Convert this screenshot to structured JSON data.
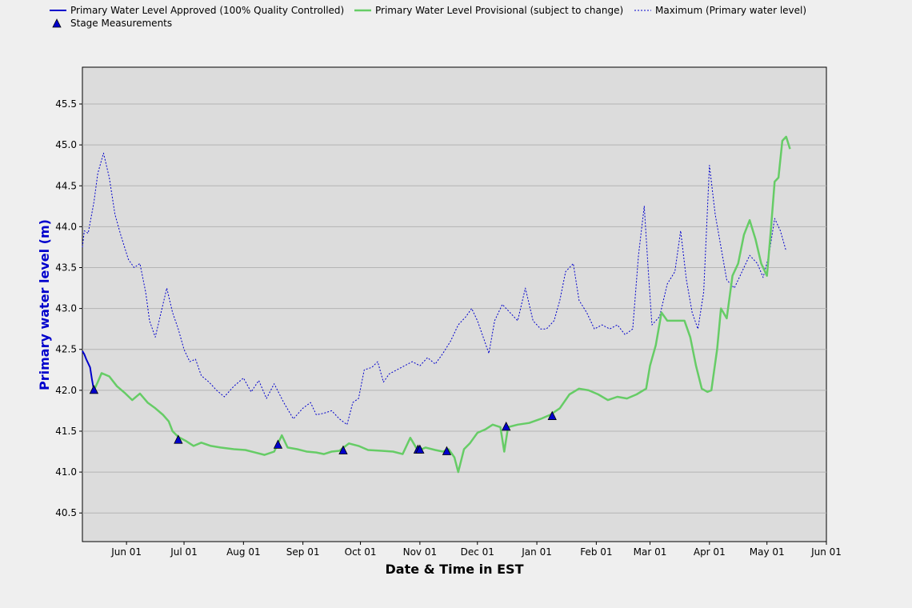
{
  "chart_data": {
    "type": "line",
    "xlabel": "Date & Time in EST",
    "ylabel": "Primary water level (m)",
    "ylim": [
      40.15,
      45.95
    ],
    "yticks": [
      40.5,
      41.0,
      41.5,
      42.0,
      42.5,
      43.0,
      43.5,
      44.0,
      44.5,
      45.0,
      45.5
    ],
    "ytick_labels": [
      "40.5",
      "41.0",
      "41.5",
      "42.0",
      "42.5",
      "43.0",
      "43.5",
      "44.0",
      "44.5",
      "45.0",
      "45.5"
    ],
    "xlim": [
      "2024-05-09",
      "2025-06-01"
    ],
    "xticks": [
      "2024-06-01",
      "2024-07-01",
      "2024-08-01",
      "2024-09-01",
      "2024-10-01",
      "2024-11-01",
      "2024-12-01",
      "2025-01-01",
      "2025-02-01",
      "2025-03-01",
      "2025-04-01",
      "2025-05-01",
      "2025-06-01"
    ],
    "xtick_labels": [
      "Jun 01",
      "Jul 01",
      "Aug 01",
      "Sep 01",
      "Oct 01",
      "Nov 01",
      "Dec 01",
      "Jan 01",
      "Feb 01",
      "Mar 01",
      "Apr 01",
      "May 01",
      "Jun 01"
    ],
    "grid": "horizontal",
    "legend_position": "top",
    "colors": {
      "approved": "#0000cc",
      "provisional": "#66cc66",
      "maximum": "#0000cc",
      "plot_bg": "#dcdcdc",
      "page_bg": "#efefef"
    },
    "series": [
      {
        "name": "Primary Water Level Approved (100% Quality Controlled)",
        "style": "solid",
        "points": [
          [
            "2024-05-09",
            42.48
          ],
          [
            "2024-05-10",
            42.44
          ],
          [
            "2024-05-11",
            42.38
          ],
          [
            "2024-05-12",
            42.33
          ],
          [
            "2024-05-13",
            42.28
          ],
          [
            "2024-05-14",
            42.13
          ],
          [
            "2024-05-15",
            42.0
          ]
        ]
      },
      {
        "name": "Primary Water Level Provisional (subject to change)",
        "style": "solid",
        "points": [
          [
            "2024-05-15",
            42.0
          ],
          [
            "2024-05-17",
            42.1
          ],
          [
            "2024-05-19",
            42.21
          ],
          [
            "2024-05-23",
            42.17
          ],
          [
            "2024-05-27",
            42.05
          ],
          [
            "2024-05-31",
            41.97
          ],
          [
            "2024-06-04",
            41.88
          ],
          [
            "2024-06-08",
            41.96
          ],
          [
            "2024-06-12",
            41.85
          ],
          [
            "2024-06-16",
            41.78
          ],
          [
            "2024-06-20",
            41.7
          ],
          [
            "2024-06-23",
            41.62
          ],
          [
            "2024-06-25",
            41.5
          ],
          [
            "2024-06-28",
            41.43
          ],
          [
            "2024-07-02",
            41.38
          ],
          [
            "2024-07-06",
            41.32
          ],
          [
            "2024-07-10",
            41.36
          ],
          [
            "2024-07-15",
            41.32
          ],
          [
            "2024-07-20",
            41.3
          ],
          [
            "2024-07-27",
            41.28
          ],
          [
            "2024-08-02",
            41.27
          ],
          [
            "2024-08-07",
            41.24
          ],
          [
            "2024-08-12",
            41.21
          ],
          [
            "2024-08-17",
            41.25
          ],
          [
            "2024-08-21",
            41.45
          ],
          [
            "2024-08-24",
            41.3
          ],
          [
            "2024-08-29",
            41.28
          ],
          [
            "2024-09-03",
            41.25
          ],
          [
            "2024-09-08",
            41.24
          ],
          [
            "2024-09-12",
            41.22
          ],
          [
            "2024-09-16",
            41.25
          ],
          [
            "2024-09-20",
            41.26
          ],
          [
            "2024-09-25",
            41.35
          ],
          [
            "2024-09-30",
            41.32
          ],
          [
            "2024-10-05",
            41.27
          ],
          [
            "2024-10-12",
            41.26
          ],
          [
            "2024-10-18",
            41.25
          ],
          [
            "2024-10-23",
            41.22
          ],
          [
            "2024-10-27",
            41.42
          ],
          [
            "2024-10-31",
            41.26
          ],
          [
            "2024-11-04",
            41.3
          ],
          [
            "2024-11-09",
            41.27
          ],
          [
            "2024-11-13",
            41.25
          ],
          [
            "2024-11-16",
            41.28
          ],
          [
            "2024-11-19",
            41.18
          ],
          [
            "2024-11-21",
            41.0
          ],
          [
            "2024-11-24",
            41.28
          ],
          [
            "2024-11-27",
            41.35
          ],
          [
            "2024-12-01",
            41.48
          ],
          [
            "2024-12-05",
            41.52
          ],
          [
            "2024-12-09",
            41.58
          ],
          [
            "2024-12-13",
            41.55
          ],
          [
            "2024-12-15",
            41.25
          ],
          [
            "2024-12-17",
            41.55
          ],
          [
            "2024-12-22",
            41.58
          ],
          [
            "2024-12-28",
            41.6
          ],
          [
            "2025-01-03",
            41.65
          ],
          [
            "2025-01-08",
            41.7
          ],
          [
            "2025-01-13",
            41.78
          ],
          [
            "2025-01-18",
            41.95
          ],
          [
            "2025-01-23",
            42.02
          ],
          [
            "2025-01-28",
            42.0
          ],
          [
            "2025-02-02",
            41.95
          ],
          [
            "2025-02-07",
            41.88
          ],
          [
            "2025-02-12",
            41.92
          ],
          [
            "2025-02-17",
            41.9
          ],
          [
            "2025-02-22",
            41.95
          ],
          [
            "2025-02-27",
            42.02
          ],
          [
            "2025-03-01",
            42.3
          ],
          [
            "2025-03-04",
            42.55
          ],
          [
            "2025-03-07",
            42.95
          ],
          [
            "2025-03-10",
            42.85
          ],
          [
            "2025-03-14",
            42.85
          ],
          [
            "2025-03-19",
            42.85
          ],
          [
            "2025-03-22",
            42.65
          ],
          [
            "2025-03-25",
            42.3
          ],
          [
            "2025-03-28",
            42.02
          ],
          [
            "2025-03-31",
            41.98
          ],
          [
            "2025-04-02",
            42.0
          ],
          [
            "2025-04-05",
            42.5
          ],
          [
            "2025-04-07",
            43.0
          ],
          [
            "2025-04-10",
            42.88
          ],
          [
            "2025-04-13",
            43.4
          ],
          [
            "2025-04-16",
            43.55
          ],
          [
            "2025-04-19",
            43.9
          ],
          [
            "2025-04-22",
            44.08
          ],
          [
            "2025-04-25",
            43.85
          ],
          [
            "2025-04-28",
            43.55
          ],
          [
            "2025-05-01",
            43.4
          ],
          [
            "2025-05-03",
            43.95
          ],
          [
            "2025-05-05",
            44.55
          ],
          [
            "2025-05-07",
            44.6
          ],
          [
            "2025-05-09",
            45.05
          ],
          [
            "2025-05-11",
            45.1
          ],
          [
            "2025-05-13",
            44.95
          ]
        ]
      },
      {
        "name": "Maximum (Primary water level)",
        "style": "dotted",
        "points": [
          [
            "2024-05-09",
            43.75
          ],
          [
            "2024-05-10",
            43.95
          ],
          [
            "2024-05-12",
            43.92
          ],
          [
            "2024-05-15",
            44.3
          ],
          [
            "2024-05-17",
            44.65
          ],
          [
            "2024-05-20",
            44.9
          ],
          [
            "2024-05-23",
            44.6
          ],
          [
            "2024-05-26",
            44.15
          ],
          [
            "2024-05-29",
            43.9
          ],
          [
            "2024-06-02",
            43.6
          ],
          [
            "2024-06-05",
            43.5
          ],
          [
            "2024-06-08",
            43.55
          ],
          [
            "2024-06-11",
            43.2
          ],
          [
            "2024-06-13",
            42.85
          ],
          [
            "2024-06-16",
            42.65
          ],
          [
            "2024-06-19",
            42.95
          ],
          [
            "2024-06-22",
            43.25
          ],
          [
            "2024-06-25",
            42.95
          ],
          [
            "2024-06-28",
            42.75
          ],
          [
            "2024-07-01",
            42.5
          ],
          [
            "2024-07-04",
            42.35
          ],
          [
            "2024-07-07",
            42.38
          ],
          [
            "2024-07-10",
            42.18
          ],
          [
            "2024-07-14",
            42.1
          ],
          [
            "2024-07-18",
            42.0
          ],
          [
            "2024-07-22",
            41.92
          ],
          [
            "2024-07-27",
            42.05
          ],
          [
            "2024-08-01",
            42.15
          ],
          [
            "2024-08-05",
            41.98
          ],
          [
            "2024-08-09",
            42.12
          ],
          [
            "2024-08-13",
            41.9
          ],
          [
            "2024-08-17",
            42.08
          ],
          [
            "2024-08-22",
            41.85
          ],
          [
            "2024-08-27",
            41.65
          ],
          [
            "2024-09-01",
            41.78
          ],
          [
            "2024-09-05",
            41.85
          ],
          [
            "2024-09-08",
            41.7
          ],
          [
            "2024-09-12",
            41.72
          ],
          [
            "2024-09-16",
            41.75
          ],
          [
            "2024-09-20",
            41.65
          ],
          [
            "2024-09-24",
            41.58
          ],
          [
            "2024-09-27",
            41.85
          ],
          [
            "2024-09-30",
            41.9
          ],
          [
            "2024-10-03",
            42.25
          ],
          [
            "2024-10-07",
            42.28
          ],
          [
            "2024-10-10",
            42.35
          ],
          [
            "2024-10-13",
            42.1
          ],
          [
            "2024-10-16",
            42.2
          ],
          [
            "2024-10-20",
            42.25
          ],
          [
            "2024-10-24",
            42.3
          ],
          [
            "2024-10-28",
            42.35
          ],
          [
            "2024-11-01",
            42.3
          ],
          [
            "2024-11-05",
            42.4
          ],
          [
            "2024-11-09",
            42.32
          ],
          [
            "2024-11-13",
            42.45
          ],
          [
            "2024-11-17",
            42.6
          ],
          [
            "2024-11-21",
            42.8
          ],
          [
            "2024-11-25",
            42.9
          ],
          [
            "2024-11-28",
            43.0
          ],
          [
            "2024-12-01",
            42.85
          ],
          [
            "2024-12-04",
            42.65
          ],
          [
            "2024-12-07",
            42.45
          ],
          [
            "2024-12-10",
            42.85
          ],
          [
            "2024-12-14",
            43.05
          ],
          [
            "2024-12-18",
            42.95
          ],
          [
            "2024-12-22",
            42.85
          ],
          [
            "2024-12-26",
            43.25
          ],
          [
            "2024-12-30",
            42.85
          ],
          [
            "2025-01-03",
            42.75
          ],
          [
            "2025-01-06",
            42.75
          ],
          [
            "2025-01-10",
            42.85
          ],
          [
            "2025-01-13",
            43.1
          ],
          [
            "2025-01-16",
            43.45
          ],
          [
            "2025-01-20",
            43.55
          ],
          [
            "2025-01-23",
            43.1
          ],
          [
            "2025-01-27",
            42.95
          ],
          [
            "2025-01-31",
            42.75
          ],
          [
            "2025-02-04",
            42.8
          ],
          [
            "2025-02-08",
            42.75
          ],
          [
            "2025-02-12",
            42.8
          ],
          [
            "2025-02-16",
            42.68
          ],
          [
            "2025-02-20",
            42.75
          ],
          [
            "2025-02-23",
            43.65
          ],
          [
            "2025-02-26",
            44.25
          ],
          [
            "2025-02-28",
            43.5
          ],
          [
            "2025-03-02",
            42.8
          ],
          [
            "2025-03-06",
            42.9
          ],
          [
            "2025-03-10",
            43.3
          ],
          [
            "2025-03-14",
            43.45
          ],
          [
            "2025-03-17",
            43.95
          ],
          [
            "2025-03-20",
            43.35
          ],
          [
            "2025-03-23",
            42.95
          ],
          [
            "2025-03-26",
            42.75
          ],
          [
            "2025-03-29",
            43.2
          ],
          [
            "2025-04-01",
            44.75
          ],
          [
            "2025-04-04",
            44.15
          ],
          [
            "2025-04-07",
            43.75
          ],
          [
            "2025-04-10",
            43.35
          ],
          [
            "2025-04-14",
            43.25
          ],
          [
            "2025-04-18",
            43.45
          ],
          [
            "2025-04-22",
            43.65
          ],
          [
            "2025-04-26",
            43.55
          ],
          [
            "2025-04-29",
            43.38
          ],
          [
            "2025-05-02",
            43.65
          ],
          [
            "2025-05-05",
            44.1
          ],
          [
            "2025-05-08",
            43.95
          ],
          [
            "2025-05-11",
            43.7
          ]
        ]
      },
      {
        "name": "Stage Measurements",
        "style": "marker",
        "marker": "triangle",
        "points": [
          [
            "2024-05-15",
            42.0
          ],
          [
            "2024-06-28",
            41.39
          ],
          [
            "2024-08-19",
            41.33
          ],
          [
            "2024-09-22",
            41.26
          ],
          [
            "2024-10-31",
            41.27
          ],
          [
            "2024-11-01",
            41.27
          ],
          [
            "2024-11-15",
            41.25
          ],
          [
            "2024-12-16",
            41.55
          ],
          [
            "2025-01-09",
            41.68
          ]
        ]
      }
    ]
  }
}
